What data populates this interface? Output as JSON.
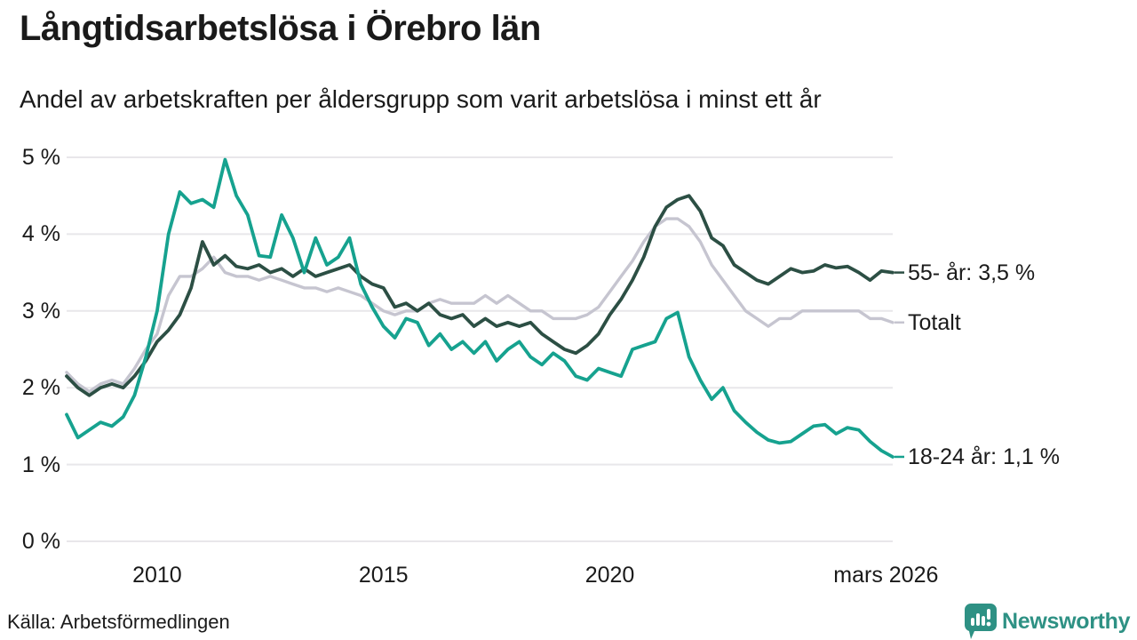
{
  "header": {
    "title": "Långtidsarbetslösa i Örebro län",
    "subtitle": "Andel av arbetskraften per åldersgrupp som varit arbetslösa i minst ett år"
  },
  "footer": {
    "source": "Källa: Arbetsförmedlingen",
    "brand": "Newsworthy"
  },
  "colors": {
    "text": "#1a1a1a",
    "brand_teal": "#2e9184",
    "grid": "#e8e7ea"
  },
  "chart_data": {
    "type": "line",
    "title": "Långtidsarbetslösa i Örebro län",
    "subtitle": "Andel av arbetskraften per åldersgrupp som varit arbetslösa i minst ett år",
    "x_range": [
      2008,
      2026.25
    ],
    "y_range": [
      0,
      5
    ],
    "grid_color": "#e8e7ea",
    "y_ticks": [
      {
        "value": 5,
        "label": "5 %"
      },
      {
        "value": 4,
        "label": "4 %"
      },
      {
        "value": 3,
        "label": "3 %"
      },
      {
        "value": 2,
        "label": "2 %"
      },
      {
        "value": 1,
        "label": "1 %"
      },
      {
        "value": 0,
        "label": "0 %"
      }
    ],
    "x_ticks": [
      {
        "value": 2010,
        "label": "2010"
      },
      {
        "value": 2015,
        "label": "2015"
      },
      {
        "value": 2020,
        "label": "2020"
      },
      {
        "value": 2026.1,
        "label": "mars 2026"
      }
    ],
    "series": [
      {
        "id": "totalt",
        "name": "Totalt",
        "end_label": "Totalt",
        "color": "#c6c5d0",
        "stroke_width": 3.4,
        "x_start": 2008.0,
        "x_step": 0.25,
        "values": [
          2.2,
          2.05,
          1.95,
          2.05,
          2.1,
          2.05,
          2.25,
          2.5,
          2.7,
          3.2,
          3.45,
          3.45,
          3.55,
          3.7,
          3.5,
          3.45,
          3.45,
          3.4,
          3.45,
          3.4,
          3.35,
          3.3,
          3.3,
          3.25,
          3.3,
          3.25,
          3.2,
          3.1,
          3.0,
          2.95,
          3.0,
          3.0,
          3.1,
          3.15,
          3.1,
          3.1,
          3.1,
          3.2,
          3.1,
          3.2,
          3.1,
          3.0,
          3.0,
          2.9,
          2.9,
          2.9,
          2.95,
          3.05,
          3.25,
          3.45,
          3.65,
          3.9,
          4.1,
          4.2,
          4.2,
          4.1,
          3.9,
          3.6,
          3.4,
          3.2,
          3.0,
          2.9,
          2.8,
          2.9,
          2.9,
          3.0,
          3.0,
          3.0,
          3.0,
          3.0,
          3.0,
          2.9,
          2.9,
          2.85
        ]
      },
      {
        "id": "55-ar",
        "name": "55- år",
        "end_label": "55- år: 3,5 %",
        "color": "#2c4f44",
        "stroke_width": 3.8,
        "x_start": 2008.0,
        "x_step": 0.25,
        "values": [
          2.15,
          2.0,
          1.9,
          2.0,
          2.05,
          2.0,
          2.15,
          2.35,
          2.6,
          2.75,
          2.95,
          3.3,
          3.9,
          3.6,
          3.72,
          3.58,
          3.55,
          3.6,
          3.5,
          3.55,
          3.45,
          3.55,
          3.45,
          3.5,
          3.55,
          3.6,
          3.45,
          3.35,
          3.3,
          3.05,
          3.1,
          3.0,
          3.1,
          2.95,
          2.9,
          2.95,
          2.8,
          2.9,
          2.8,
          2.85,
          2.8,
          2.85,
          2.7,
          2.6,
          2.5,
          2.45,
          2.55,
          2.7,
          2.95,
          3.15,
          3.4,
          3.7,
          4.1,
          4.35,
          4.45,
          4.5,
          4.3,
          3.95,
          3.85,
          3.6,
          3.5,
          3.4,
          3.35,
          3.45,
          3.55,
          3.5,
          3.52,
          3.6,
          3.56,
          3.58,
          3.5,
          3.4,
          3.52,
          3.5
        ]
      },
      {
        "id": "18-24-ar",
        "name": "18-24 år",
        "end_label": "18-24 år: 1,1 %",
        "color": "#16a28f",
        "stroke_width": 3.8,
        "x_start": 2008.0,
        "x_step": 0.25,
        "values": [
          1.65,
          1.35,
          1.45,
          1.55,
          1.5,
          1.62,
          1.9,
          2.4,
          3.0,
          4.0,
          4.55,
          4.4,
          4.45,
          4.35,
          4.97,
          4.5,
          4.25,
          3.72,
          3.7,
          4.25,
          3.95,
          3.5,
          3.95,
          3.6,
          3.7,
          3.95,
          3.35,
          3.05,
          2.8,
          2.65,
          2.9,
          2.85,
          2.55,
          2.7,
          2.5,
          2.6,
          2.45,
          2.6,
          2.35,
          2.5,
          2.6,
          2.4,
          2.3,
          2.45,
          2.35,
          2.15,
          2.1,
          2.25,
          2.2,
          2.15,
          2.5,
          2.55,
          2.6,
          2.9,
          2.98,
          2.4,
          2.1,
          1.85,
          2.0,
          1.7,
          1.55,
          1.42,
          1.32,
          1.28,
          1.3,
          1.4,
          1.5,
          1.52,
          1.4,
          1.48,
          1.45,
          1.3,
          1.18,
          1.1
        ]
      }
    ]
  }
}
